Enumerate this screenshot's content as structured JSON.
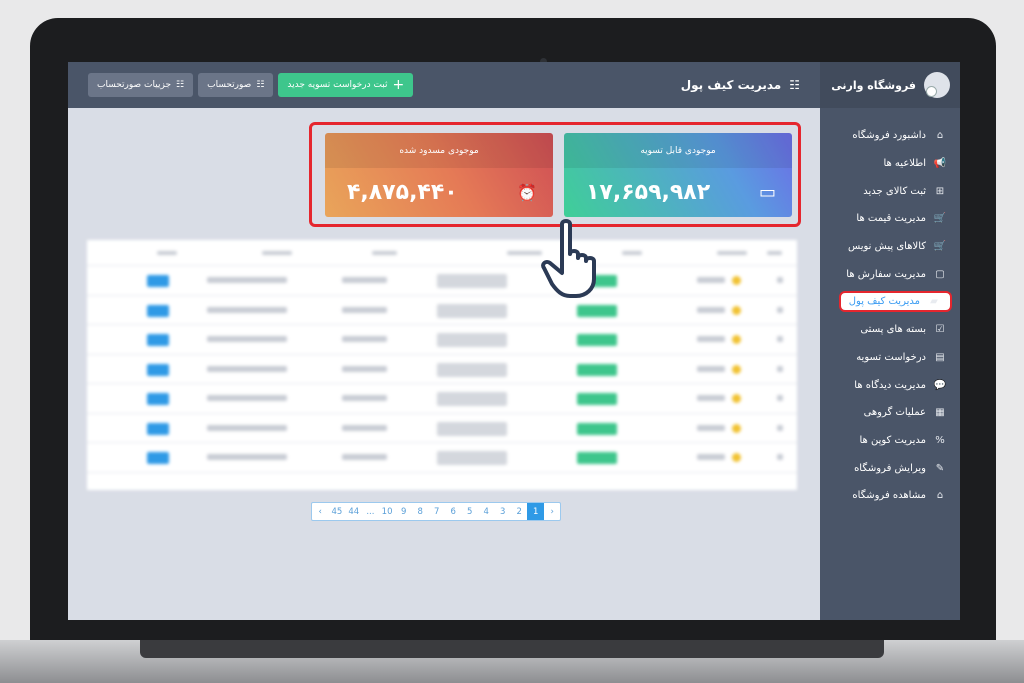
{
  "sidebar": {
    "store_name": "فروشگاه وارنی",
    "items": [
      {
        "label": "داشبورد فروشگاه",
        "icon": "store-icon"
      },
      {
        "label": "اطلاعیه ها",
        "icon": "megaphone-icon"
      },
      {
        "label": "ثبت کالای جدید",
        "icon": "box-plus-icon"
      },
      {
        "label": "مدیریت قیمت ها",
        "icon": "cart-icon"
      },
      {
        "label": "کالاهای پیش نویس",
        "icon": "cart-icon"
      },
      {
        "label": "مدیریت سفارش ها",
        "icon": "bag-icon"
      },
      {
        "label": "مدیریت کیف پول",
        "icon": "wallet-icon",
        "active": true
      },
      {
        "label": "بسته های پستی",
        "icon": "package-icon"
      },
      {
        "label": "درخواست تسویه",
        "icon": "register-icon"
      },
      {
        "label": "مدیریت دیدگاه ها",
        "icon": "comments-icon"
      },
      {
        "label": "عملیات گروهی",
        "icon": "bulk-icon"
      },
      {
        "label": "مدیریت کوپن ها",
        "icon": "percent-icon"
      },
      {
        "label": "ویرایش فروشگاه",
        "icon": "pencil-icon"
      },
      {
        "label": "مشاهده فروشگاه",
        "icon": "store-icon"
      }
    ]
  },
  "header": {
    "title": "مدیریت کیف پول",
    "new_request": "ثبت درخواست تسویه جدید",
    "statement": "صورتحساب",
    "statement_details": "جزییات صورتحساب"
  },
  "cards": [
    {
      "label": "موجودی قابل تسویه",
      "value": "۱۷,۶۵۹,۹۸۲",
      "icon": "credit-card-icon"
    },
    {
      "label": "موجودی مسدود شده",
      "value": "۴,۸۷۵,۴۴۰",
      "icon": "alarm-clock-icon"
    }
  ],
  "pagination": {
    "pages": [
      "‹",
      "45",
      "44",
      "...",
      "10",
      "9",
      "8",
      "7",
      "6",
      "5",
      "4",
      "3",
      "2",
      "1",
      "›"
    ],
    "current": "1"
  },
  "colors": {
    "sidebar": "#4a5568",
    "accent": "#2f9ae6",
    "green": "#3ec68c",
    "highlight": "#e5262e"
  }
}
